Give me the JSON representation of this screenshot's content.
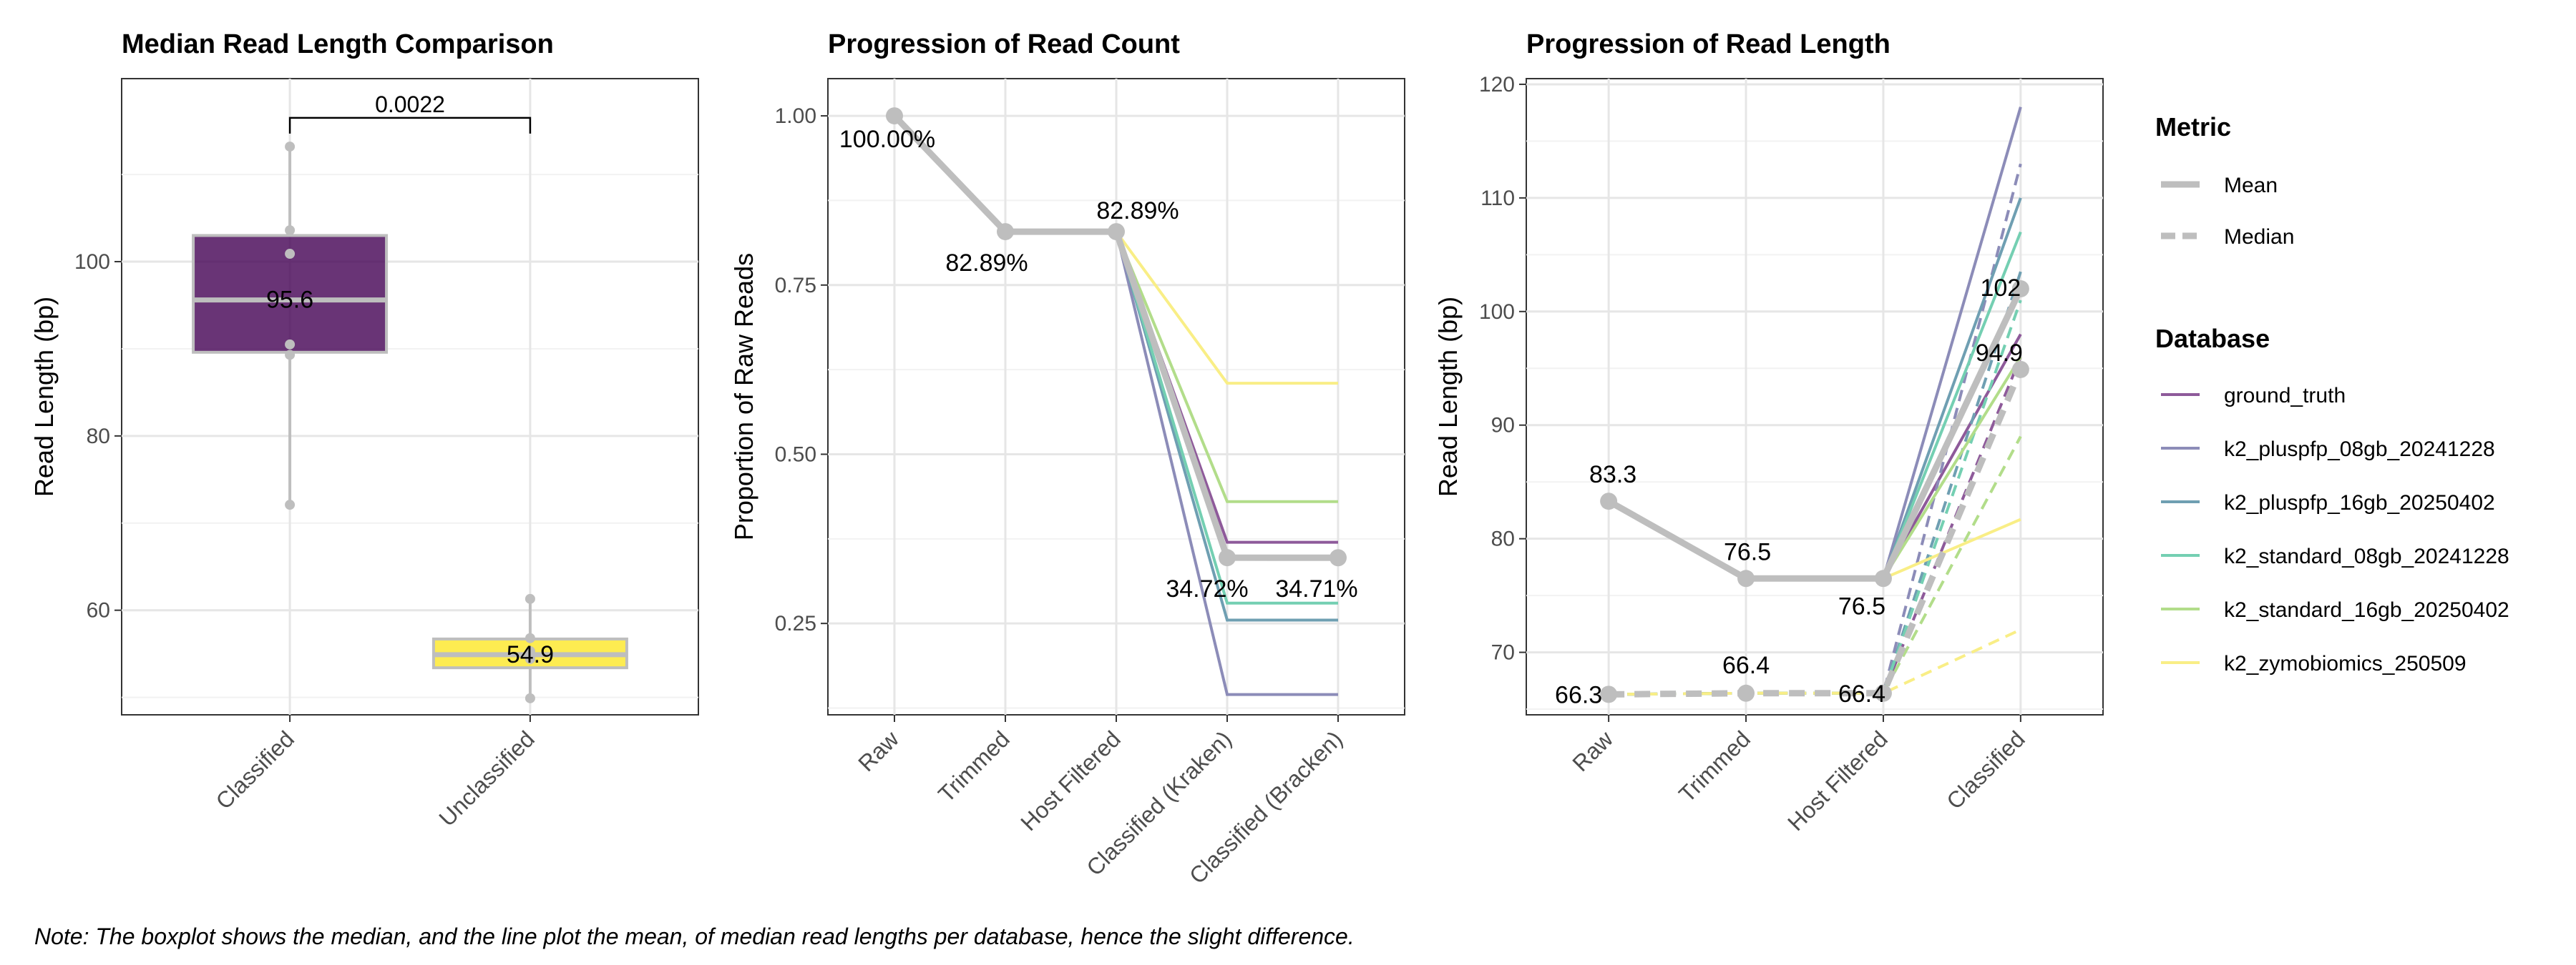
{
  "note": "Note: The boxplot shows the median, and the line plot the mean, of median read lengths per database, hence the slight difference.",
  "chart_data": [
    {
      "type": "box",
      "title": "Median Read Length Comparison",
      "xlabel": "",
      "ylabel": "Read Length (bp)",
      "categories": [
        "Classified",
        "Unclassified"
      ],
      "ylim": [
        48,
        121
      ],
      "yticks": [
        60,
        80,
        100
      ],
      "boxes": [
        {
          "category": "Classified",
          "min": 72.1,
          "q1": 89.6,
          "median": 95.6,
          "q3": 103.0,
          "max": 113.2,
          "points": [
            72.1,
            89.3,
            90.5,
            100.9,
            103.6,
            113.2
          ],
          "label": "95.6",
          "color": "#440154"
        },
        {
          "category": "Unclassified",
          "min": 49.9,
          "q1": 53.4,
          "median": 54.9,
          "q3": 56.7,
          "max": 61.3,
          "points": [
            49.9,
            54.4,
            55.3,
            56.8,
            61.3
          ],
          "label": "54.9",
          "color": "#FDE725"
        }
      ],
      "comparison": {
        "label": "0.0022",
        "y": 116.5
      }
    },
    {
      "type": "line",
      "title": "Progression of Read Count",
      "xlabel": "",
      "ylabel": "Proportion of Raw Reads",
      "categories": [
        "Raw",
        "Trimmed",
        "Host Filtered",
        "Classified (Kraken)",
        "Classified (Bracken)"
      ],
      "ylim": [
        0.115,
        1.055
      ],
      "yticks": [
        0.25,
        0.5,
        0.75,
        1.0
      ],
      "ytick_labels": [
        "0.25",
        "0.50",
        "0.75",
        "1.00"
      ],
      "mean_series": {
        "values": [
          1.0,
          0.8289,
          0.8289,
          0.3472,
          0.3471
        ],
        "labels": [
          "100.00%",
          "82.89%",
          "82.89%",
          "34.72%",
          "34.71%"
        ],
        "color": "#BEBEBE"
      },
      "series": [
        {
          "name": "ground_truth",
          "color": "#8E5A9A",
          "values": [
            1.0,
            0.8289,
            0.8289,
            0.37,
            0.37
          ]
        },
        {
          "name": "k2_pluspfp_08gb_20241228",
          "color": "#8C8CB8",
          "values": [
            1.0,
            0.8289,
            0.8289,
            0.145,
            0.145
          ]
        },
        {
          "name": "k2_pluspfp_16gb_20250402",
          "color": "#6F9FB2",
          "values": [
            1.0,
            0.8289,
            0.8289,
            0.255,
            0.255
          ]
        },
        {
          "name": "k2_standard_08gb_20241228",
          "color": "#74CFB2",
          "values": [
            1.0,
            0.8289,
            0.8289,
            0.28,
            0.28
          ]
        },
        {
          "name": "k2_standard_16gb_20250402",
          "color": "#B2DD8A",
          "values": [
            1.0,
            0.8289,
            0.8289,
            0.43,
            0.43
          ]
        },
        {
          "name": "k2_zymobiomics_250509",
          "color": "#F9EE86",
          "values": [
            1.0,
            0.8289,
            0.8289,
            0.605,
            0.605
          ]
        }
      ]
    },
    {
      "type": "line",
      "title": "Progression of Read Length",
      "xlabel": "",
      "ylabel": "Read Length (bp)",
      "categories": [
        "Raw",
        "Trimmed",
        "Host Filtered",
        "Classified"
      ],
      "ylim": [
        64.5,
        120.5
      ],
      "yticks": [
        70,
        80,
        90,
        100,
        110,
        120
      ],
      "mean_series": {
        "values": [
          83.3,
          76.5,
          76.5,
          102.0
        ],
        "labels": [
          "83.3",
          "76.5",
          "76.5",
          "102"
        ],
        "color": "#BEBEBE"
      },
      "median_series": {
        "values": [
          66.3,
          66.4,
          66.4,
          94.9
        ],
        "labels": [
          "66.3",
          "66.4",
          "66.4",
          "94.9"
        ],
        "color": "#BEBEBE"
      },
      "series": [
        {
          "name": "ground_truth",
          "color": "#8E5A9A",
          "mean": [
            83.3,
            76.5,
            76.5,
            98.0
          ],
          "median": [
            66.3,
            66.4,
            66.4,
            96.0
          ]
        },
        {
          "name": "k2_pluspfp_08gb_20241228",
          "color": "#8C8CB8",
          "mean": [
            83.3,
            76.5,
            76.5,
            118.0
          ],
          "median": [
            66.3,
            66.4,
            66.4,
            113.0
          ]
        },
        {
          "name": "k2_pluspfp_16gb_20250402",
          "color": "#6F9FB2",
          "mean": [
            83.3,
            76.5,
            76.5,
            110.0
          ],
          "median": [
            66.3,
            66.4,
            66.4,
            103.5
          ]
        },
        {
          "name": "k2_standard_08gb_20241228",
          "color": "#74CFB2",
          "mean": [
            83.3,
            76.5,
            76.5,
            107.0
          ],
          "median": [
            66.3,
            66.4,
            66.4,
            101.0
          ]
        },
        {
          "name": "k2_standard_16gb_20250402",
          "color": "#B2DD8A",
          "mean": [
            83.3,
            76.5,
            76.5,
            96.0
          ],
          "median": [
            66.3,
            66.4,
            66.4,
            89.0
          ]
        },
        {
          "name": "k2_zymobiomics_250509",
          "color": "#F9EE86",
          "mean": [
            83.3,
            76.5,
            76.5,
            81.7
          ],
          "median": [
            66.3,
            66.4,
            66.4,
            72.0
          ]
        }
      ]
    }
  ],
  "legend": {
    "metric_title": "Metric",
    "metric_items": [
      {
        "label": "Mean",
        "style": "solid"
      },
      {
        "label": "Median",
        "style": "dashed"
      }
    ],
    "database_title": "Database",
    "database_items": [
      {
        "label": "ground_truth",
        "color": "#8E5A9A"
      },
      {
        "label": "k2_pluspfp_08gb_20241228",
        "color": "#8C8CB8"
      },
      {
        "label": "k2_pluspfp_16gb_20250402",
        "color": "#6F9FB2"
      },
      {
        "label": "k2_standard_08gb_20241228",
        "color": "#74CFB2"
      },
      {
        "label": "k2_standard_16gb_20250402",
        "color": "#B2DD8A"
      },
      {
        "label": "k2_zymobiomics_250509",
        "color": "#F9EE86"
      }
    ]
  }
}
